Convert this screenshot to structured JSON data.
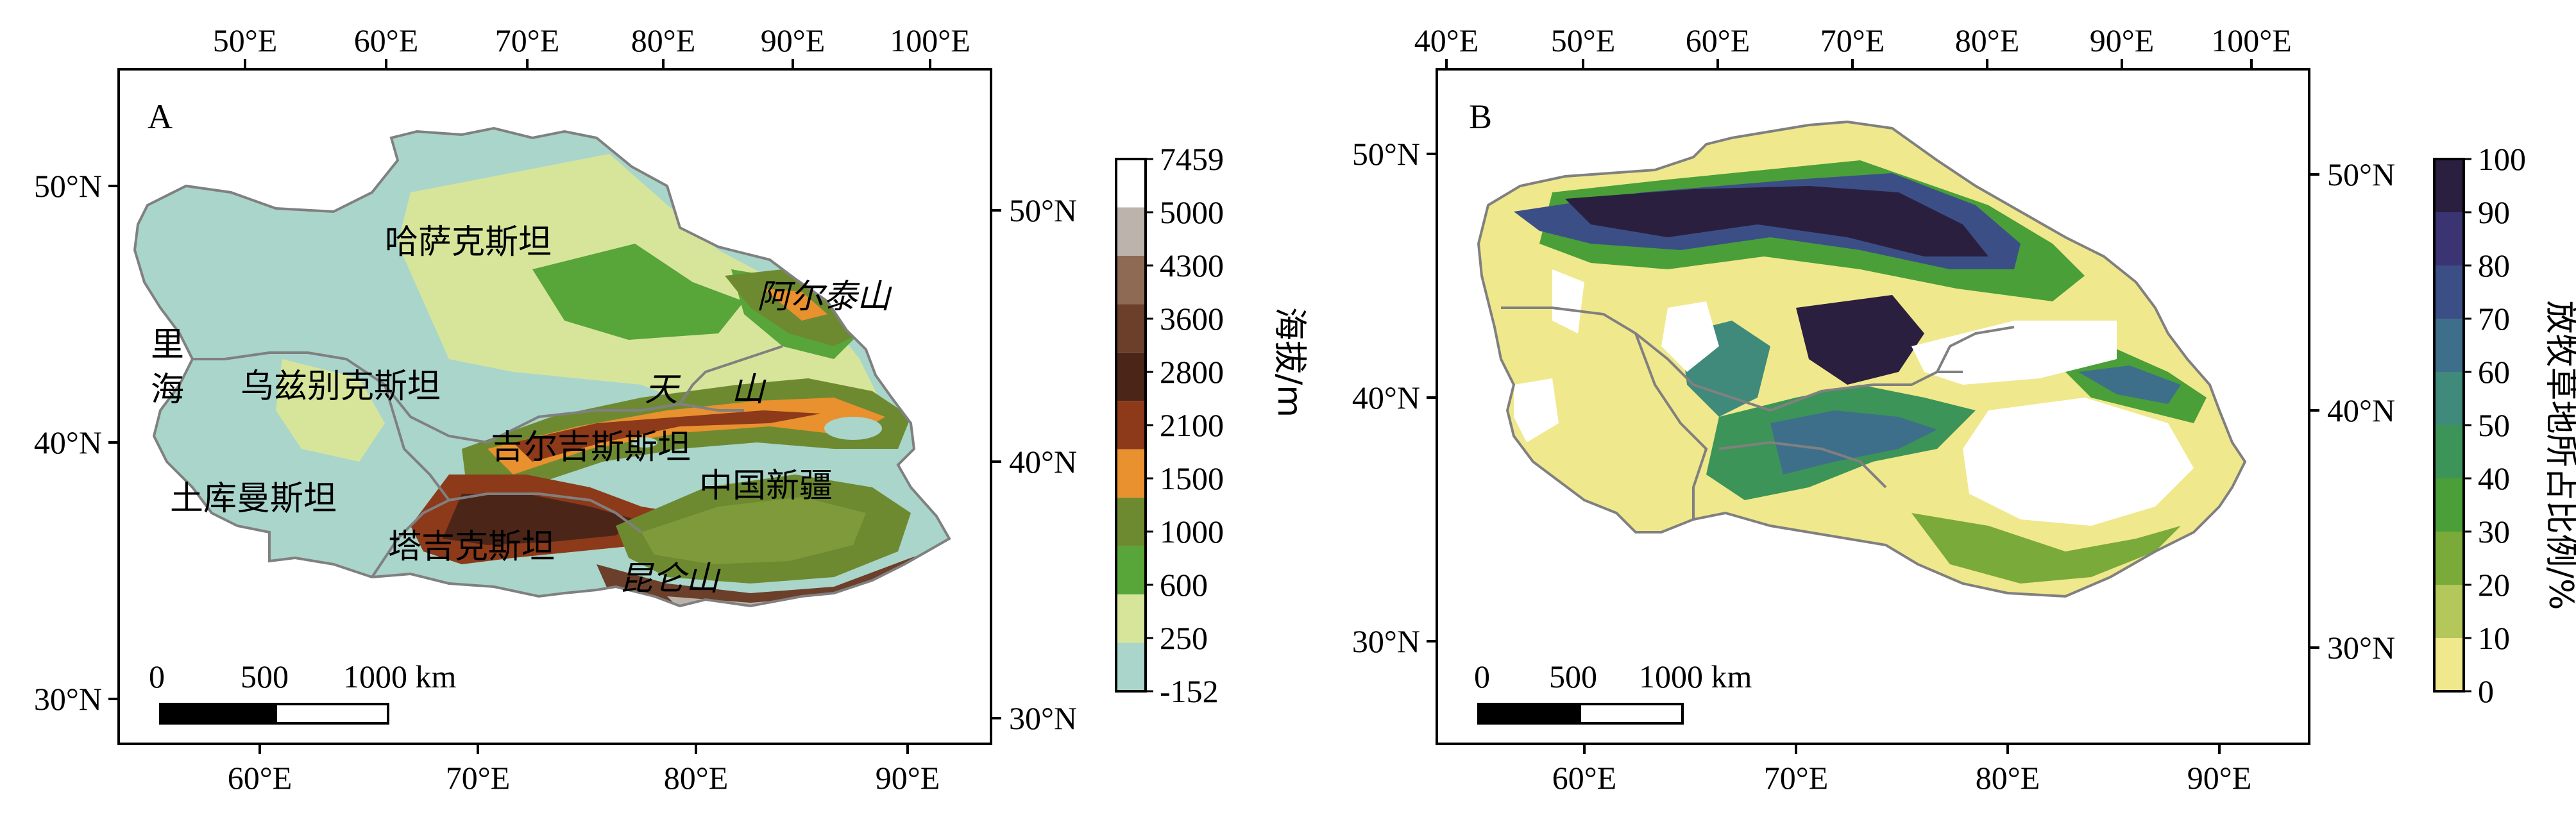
{
  "panelA": {
    "label": "A",
    "top_ticks": [
      "50°E",
      "60°E",
      "70°E",
      "80°E",
      "90°E",
      "100°E"
    ],
    "bottom_ticks": [
      "60°E",
      "70°E",
      "80°E",
      "90°E"
    ],
    "left_ticks": [
      "50°N",
      "40°N",
      "30°N"
    ],
    "right_ticks": [
      "50°N",
      "40°N",
      "30°N"
    ],
    "places": {
      "kazakhstan": "哈萨克斯坦",
      "altai": "阿尔泰山",
      "caspian_1": "里",
      "caspian_2": "海",
      "uzbekistan": "乌兹别克斯坦",
      "tianshan_1": "天",
      "tianshan_2": "山",
      "kyrgyzstan": "吉尔吉斯斯坦",
      "xinjiang": "中国新疆",
      "turkmenistan": "土库曼斯坦",
      "tajikistan": "塔吉克斯坦",
      "kunlun": "昆仑山"
    },
    "scalebar": {
      "labels": [
        "0",
        "500",
        "1000 km"
      ]
    },
    "legend": {
      "title": "海拔/m",
      "labels": [
        "7459",
        "5000",
        "4300",
        "3600",
        "2800",
        "2100",
        "1500",
        "1000",
        "600",
        "250",
        "-152"
      ],
      "colors": [
        "#ffffff",
        "#bcb3ad",
        "#8e6a55",
        "#6b3f2a",
        "#4b2618",
        "#8c3a1a",
        "#e8912e",
        "#6e8a31",
        "#58a53a",
        "#d7e59b",
        "#a9d5cb"
      ]
    }
  },
  "panelB": {
    "label": "B",
    "top_ticks": [
      "40°E",
      "50°E",
      "60°E",
      "70°E",
      "80°E",
      "90°E",
      "100°E"
    ],
    "bottom_ticks": [
      "60°E",
      "70°E",
      "80°E",
      "90°E"
    ],
    "left_ticks": [
      "50°N",
      "40°N",
      "30°N"
    ],
    "right_ticks": [
      "50°N",
      "40°N",
      "30°N"
    ],
    "scalebar": {
      "labels": [
        "0",
        "500",
        "1000 km"
      ]
    },
    "legend": {
      "title": "放牧草地所占比例/%",
      "labels": [
        "100",
        "90",
        "80",
        "70",
        "60",
        "50",
        "40",
        "30",
        "20",
        "10",
        "0"
      ],
      "colors": [
        "#2b1f3f",
        "#3a3472",
        "#3b4f86",
        "#3e6f8a",
        "#3f8a7b",
        "#3c9458",
        "#4a9f38",
        "#7aaa3a",
        "#b3c75a",
        "#f0e88c"
      ]
    }
  }
}
